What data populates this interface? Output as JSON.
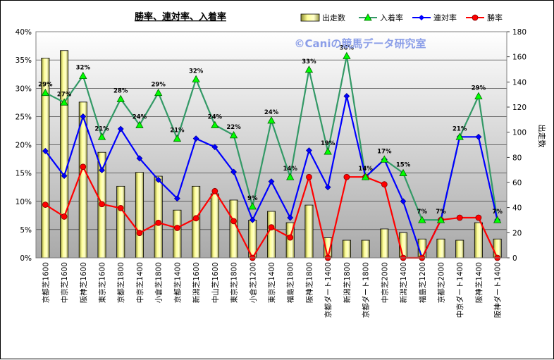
{
  "chart_data": {
    "type": "bar+line",
    "title": "勝率、連対率、入着率",
    "watermark": "©Caniの競馬データ研究室",
    "y_left": {
      "ticks": [
        "0%",
        "5%",
        "10%",
        "15%",
        "20%",
        "25%",
        "30%",
        "35%",
        "40%"
      ],
      "range": [
        0,
        40
      ]
    },
    "y_right": {
      "label": "出走数",
      "ticks": [
        "0",
        "20",
        "40",
        "60",
        "80",
        "100",
        "120",
        "140",
        "160",
        "180"
      ],
      "range": [
        0,
        180
      ]
    },
    "categories": [
      "京都芝1600",
      "中京芝1600",
      "阪神芝1600",
      "東京芝1600",
      "京都芝1800",
      "中京芝1400",
      "小倉芝1800",
      "京都芝1400",
      "新潟芝1600",
      "中山芝1600",
      "東京芝1800",
      "小倉芝1200",
      "東京芝1400",
      "福島芝1800",
      "阪神芝1800",
      "京都ダート1400",
      "新潟芝1800",
      "京都ダート1800",
      "中京芝2000",
      "新潟芝1400",
      "福島芝1200",
      "京都芝2000",
      "中京ダート1400",
      "阪神芝1400",
      "阪神ダート1400"
    ],
    "series": [
      {
        "name": "出走数",
        "kind": "bar",
        "axis": "right",
        "color": "#ffff99",
        "values": [
          159,
          165,
          124,
          84,
          57,
          68,
          65,
          38,
          57,
          51,
          46,
          30,
          37,
          28,
          42,
          16,
          14,
          14,
          23,
          20,
          15,
          15,
          14,
          28,
          15
        ]
      },
      {
        "name": "入着率",
        "kind": "line",
        "axis": "left",
        "color": "#339966",
        "values": [
          29.2,
          27.5,
          32.2,
          21.4,
          28.1,
          23.5,
          29.2,
          21.1,
          31.6,
          23.5,
          21.7,
          9.1,
          24.3,
          14.3,
          33.3,
          18.8,
          35.7,
          14.3,
          17.4,
          15.0,
          6.7,
          6.7,
          21.4,
          28.6,
          6.7
        ],
        "labels": [
          "29%",
          "27%",
          "32%",
          "21%",
          "28%",
          "24%",
          "29%",
          "21%",
          "32%",
          "24%",
          "22%",
          "9%",
          "24%",
          "14%",
          "33%",
          "19%",
          "36%",
          "14%",
          "17%",
          "15%",
          "7%",
          "7%",
          "21%",
          "29%",
          "7%"
        ]
      },
      {
        "name": "連対率",
        "kind": "line",
        "axis": "left",
        "color": "#0000ff",
        "values": [
          18.9,
          14.5,
          25.0,
          15.5,
          22.8,
          17.6,
          13.8,
          10.5,
          21.1,
          19.6,
          15.2,
          6.7,
          13.5,
          7.1,
          19.0,
          12.5,
          28.6,
          14.3,
          17.4,
          10.0,
          0.0,
          6.7,
          21.4,
          21.4,
          6.7
        ]
      },
      {
        "name": "勝率",
        "kind": "line",
        "axis": "left",
        "color": "#ff0000",
        "values": [
          9.4,
          7.3,
          16.1,
          9.5,
          8.8,
          4.4,
          6.2,
          5.3,
          7.0,
          11.8,
          6.5,
          0.0,
          5.4,
          3.6,
          14.3,
          0.0,
          14.3,
          14.3,
          13.0,
          0.0,
          0.0,
          6.7,
          7.1,
          7.1,
          0.0
        ]
      }
    ],
    "legend": [
      "出走数",
      "入着率",
      "連対率",
      "勝率"
    ],
    "legend_position": "top-right",
    "grid": true
  }
}
